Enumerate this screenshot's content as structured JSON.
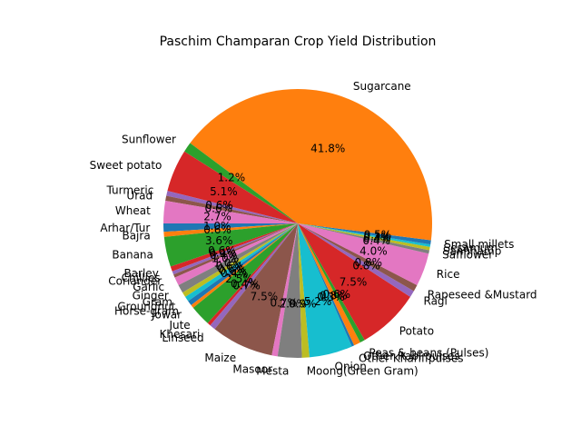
{
  "chart_data": {
    "type": "pie",
    "title": "Paschim Champaran Crop Yield Distribution",
    "start_angle_deg": 180,
    "direction": "counterclockwise",
    "percent_format": "{:.1f}%",
    "slices": [
      {
        "label": "Arhar/Tur",
        "value": 1.0,
        "color": "#1f77b4"
      },
      {
        "label": "Bajra",
        "value": 0.6,
        "color": "#ff7f0e"
      },
      {
        "label": "Banana",
        "value": 3.6,
        "color": "#2ca02c"
      },
      {
        "label": "Barley",
        "value": 0.6,
        "color": "#d62728"
      },
      {
        "label": "Chillies",
        "value": 0.4,
        "color": "#9467bd"
      },
      {
        "label": "Coriander",
        "value": 0.4,
        "color": "#8c564b"
      },
      {
        "label": "Garlic",
        "value": 1.0,
        "color": "#e377c2"
      },
      {
        "label": "Ginger",
        "value": 1.0,
        "color": "#7f7f7f"
      },
      {
        "label": "Gram",
        "value": 0.6,
        "color": "#bcbd22"
      },
      {
        "label": "Groundnut",
        "value": 0.6,
        "color": "#17becf"
      },
      {
        "label": "Horse-gram",
        "value": 0.6,
        "color": "#1f77b4"
      },
      {
        "label": "Jowar",
        "value": 0.4,
        "color": "#ff7f0e"
      },
      {
        "label": "Jute",
        "value": 2.5,
        "color": "#2ca02c"
      },
      {
        "label": "Khesari",
        "value": 0.4,
        "color": "#d62728"
      },
      {
        "label": "Linseed",
        "value": 0.7,
        "color": "#9467bd"
      },
      {
        "label": "Maize",
        "value": 7.5,
        "color": "#8c564b"
      },
      {
        "label": "Masoor",
        "value": 0.7,
        "color": "#e377c2"
      },
      {
        "label": "Mesta",
        "value": 2.9,
        "color": "#7f7f7f"
      },
      {
        "label": "Moong(Green Gram)",
        "value": 0.9,
        "color": "#bcbd22"
      },
      {
        "label": "Onion",
        "value": 5.2,
        "color": "#17becf"
      },
      {
        "label": "Other Kharif pulses",
        "value": 0.3,
        "color": "#1f77b4"
      },
      {
        "label": "Other Rabi pulses",
        "value": 0.8,
        "color": "#ff7f0e"
      },
      {
        "label": "Peas & beans (Pulses)",
        "value": 0.6,
        "color": "#2ca02c"
      },
      {
        "label": "Potato",
        "value": 7.5,
        "color": "#d62728"
      },
      {
        "label": "Ragi",
        "value": 0.8,
        "color": "#9467bd"
      },
      {
        "label": "Rapeseed &Mustard",
        "value": 0.8,
        "color": "#8c564b"
      },
      {
        "label": "Rice",
        "value": 4.0,
        "color": "#e377c2"
      },
      {
        "label": "Safflower",
        "value": 0.4,
        "color": "#7f7f7f"
      },
      {
        "label": "Sannhamp",
        "value": 0.4,
        "color": "#bcbd22"
      },
      {
        "label": "Sesamum",
        "value": 0.3,
        "color": "#17becf"
      },
      {
        "label": "Small millets",
        "value": 0.5,
        "color": "#1f77b4"
      },
      {
        "label": "Sugarcane",
        "value": 41.8,
        "color": "#ff7f0e"
      },
      {
        "label": "Sunflower",
        "value": 1.2,
        "color": "#2ca02c"
      },
      {
        "label": "Sweet potato",
        "value": 5.1,
        "color": "#d62728"
      },
      {
        "label": "Turmeric",
        "value": 0.6,
        "color": "#9467bd"
      },
      {
        "label": "Urad",
        "value": 0.6,
        "color": "#8c564b"
      },
      {
        "label": "Wheat",
        "value": 2.7,
        "color": "#e377c2"
      }
    ]
  }
}
